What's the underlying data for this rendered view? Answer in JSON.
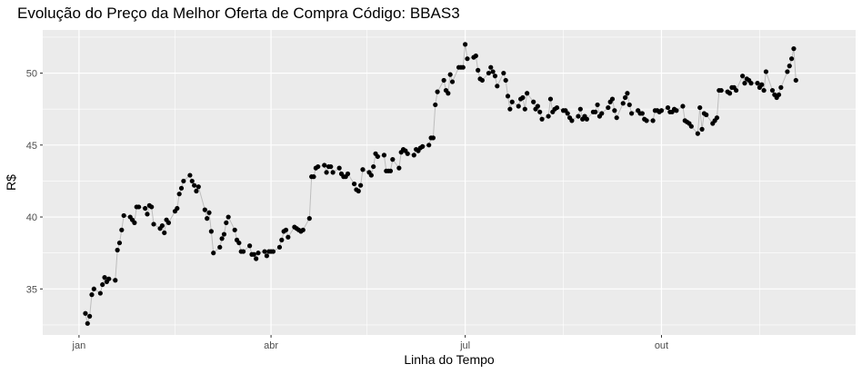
{
  "chart_data": {
    "type": "line",
    "title": "Evolução do Preço da Melhor Oferta de Compra Código: BBAS3",
    "xlabel": "Linha do Tempo",
    "ylabel": "R$",
    "x_start": "2021-01-04",
    "x_tick_labels": [
      "jan",
      "abr",
      "jul",
      "out"
    ],
    "x_ticks": [
      "2021-01-01",
      "2021-04-01",
      "2021-07-01",
      "2021-10-01"
    ],
    "x_minor_ticks": [
      "2021-02-15",
      "2021-05-16",
      "2021-08-16",
      "2021-11-16"
    ],
    "xlim": [
      "2020-12-15",
      "2021-12-31"
    ],
    "y_ticks": [
      35,
      40,
      45,
      50
    ],
    "ylim": [
      31.8,
      53.0
    ],
    "grid": true,
    "colors": {
      "panel": "#ebebeb",
      "grid": "#ffffff",
      "line": "#bdbdbd",
      "point": "#000000"
    },
    "series": [
      {
        "values": [
          33.3,
          32.6,
          33.1,
          34.6,
          35.0,
          34.7,
          35.3,
          35.8,
          35.5,
          35.7,
          35.6,
          37.7,
          38.2,
          39.1,
          40.1,
          40.0,
          39.8,
          39.6,
          40.7,
          40.7,
          40.6,
          40.2,
          40.8,
          40.7,
          39.5,
          39.2,
          39.4,
          38.9,
          39.8,
          39.6,
          40.4,
          40.6,
          41.6,
          42.0,
          42.5,
          42.9,
          42.5,
          42.2,
          41.8,
          42.1,
          40.5,
          39.9,
          40.3,
          39.0,
          37.5,
          37.9,
          38.5,
          38.8,
          39.6,
          40.0,
          39.1,
          38.4,
          38.2,
          37.6,
          37.6,
          38.0,
          37.4,
          37.4,
          37.1,
          37.5,
          37.6,
          37.3,
          37.6,
          37.6,
          37.6,
          37.9,
          38.4,
          39.0,
          39.1,
          38.6,
          39.3,
          39.2,
          39.1,
          39.0,
          39.1,
          39.9,
          42.8,
          42.8,
          43.4,
          43.5,
          43.6,
          43.1,
          43.5,
          43.5,
          43.1,
          43.4,
          43.0,
          42.8,
          42.8,
          43.0,
          42.3,
          41.9,
          41.8,
          42.2,
          43.3,
          43.1,
          42.9,
          43.5,
          44.4,
          44.2,
          44.3,
          43.2,
          43.2,
          43.2,
          44.0,
          43.4,
          44.5,
          44.7,
          44.6,
          44.4,
          44.3,
          44.7,
          44.6,
          44.8,
          44.9,
          45.0,
          45.5,
          45.5,
          47.8,
          48.7,
          49.5,
          48.8,
          48.6,
          49.9,
          49.4,
          50.4,
          50.4,
          50.4,
          52.0,
          51.0,
          51.1,
          51.2,
          50.2,
          49.6,
          49.5,
          50.0,
          50.4,
          50.1,
          49.8,
          49.1,
          50.0,
          49.5,
          48.4,
          47.5,
          48.0,
          47.7,
          48.2,
          48.3,
          47.5,
          48.6,
          48.0,
          47.5,
          47.7,
          47.3,
          46.8,
          47.0,
          48.2,
          47.3,
          47.5,
          47.6,
          47.4,
          47.4,
          47.2,
          46.9,
          46.7,
          47.0,
          47.5,
          46.8,
          47.0,
          46.8,
          47.3,
          47.3,
          47.8,
          47.0,
          47.2,
          47.6,
          48.0,
          48.2,
          47.4,
          46.9,
          47.9,
          48.3,
          48.6,
          47.8,
          47.2,
          47.4,
          47.2,
          47.2,
          46.8,
          46.7,
          46.7,
          47.4,
          47.4,
          47.3,
          47.4,
          47.6,
          47.3,
          47.3,
          47.5,
          47.4,
          47.7,
          46.7,
          46.6,
          46.5,
          46.3,
          45.8,
          47.6,
          46.1,
          47.2,
          47.1,
          46.5,
          46.7,
          46.9,
          48.8,
          48.8,
          48.7,
          48.6,
          49.0,
          49.0,
          48.8,
          49.8,
          49.3,
          49.6,
          49.5,
          49.3,
          49.3,
          49.0,
          49.2,
          48.8,
          50.1,
          48.8,
          48.5,
          48.3,
          48.5,
          49.0,
          50.1,
          50.5,
          51.0,
          51.7,
          49.5
        ]
      }
    ]
  }
}
